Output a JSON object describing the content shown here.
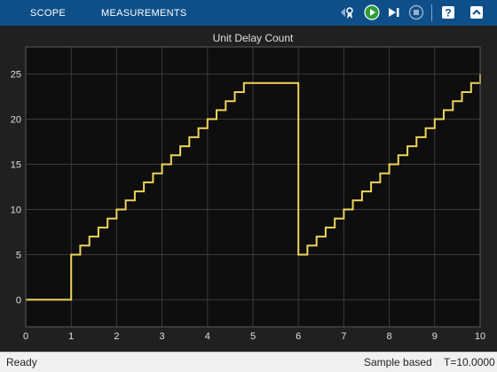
{
  "toolbar": {
    "tabs": [
      {
        "label": "SCOPE"
      },
      {
        "label": "MEASUREMENTS"
      }
    ],
    "icons": [
      "signal-select-icon",
      "run-icon",
      "step-forward-icon",
      "stop-icon",
      "help-icon",
      "collapse-icon"
    ]
  },
  "colors": {
    "toolbar": "#0e4f8a",
    "axes_bg": "#0e0e0e",
    "figure_bg": "#202020",
    "grid": "#3a3a3a",
    "line": "#eed45a",
    "tick_text": "#e0e0e0"
  },
  "status": {
    "left": "Ready",
    "mode": "Sample based",
    "time": "T=10.0000"
  },
  "chart_data": {
    "type": "line",
    "title": "Unit Delay Count",
    "xlabel": "",
    "ylabel": "",
    "xlim": [
      0,
      10
    ],
    "ylim": [
      -3,
      28
    ],
    "xticks": [
      "0",
      "1",
      "2",
      "3",
      "4",
      "5",
      "6",
      "7",
      "8",
      "9",
      "10"
    ],
    "yticks": [
      "0",
      "5",
      "10",
      "15",
      "20",
      "25"
    ],
    "xtick_values": [
      0,
      1,
      2,
      3,
      4,
      5,
      6,
      7,
      8,
      9,
      10
    ],
    "ytick_values": [
      0,
      5,
      10,
      15,
      20,
      25
    ],
    "grid": true,
    "step": true,
    "series": [
      {
        "x": [
          0,
          1,
          1.2,
          1.4,
          1.6,
          1.8,
          2,
          2.2,
          2.4,
          2.6,
          2.8,
          3,
          3.2,
          3.4,
          3.6,
          3.8,
          4,
          4.2,
          4.4,
          4.6,
          4.8,
          6,
          6.2,
          6.4,
          6.6,
          6.8,
          7,
          7.2,
          7.4,
          7.6,
          7.8,
          8,
          8.2,
          8.4,
          8.6,
          8.8,
          9,
          9.2,
          9.4,
          9.6,
          9.8,
          10
        ],
        "y": [
          0,
          5,
          6,
          7,
          8,
          9,
          10,
          11,
          12,
          13,
          14,
          15,
          16,
          17,
          18,
          19,
          20,
          21,
          22,
          23,
          24,
          5,
          6,
          7,
          8,
          9,
          10,
          11,
          12,
          13,
          14,
          15,
          16,
          17,
          18,
          19,
          20,
          21,
          22,
          23,
          24,
          25
        ]
      }
    ]
  }
}
